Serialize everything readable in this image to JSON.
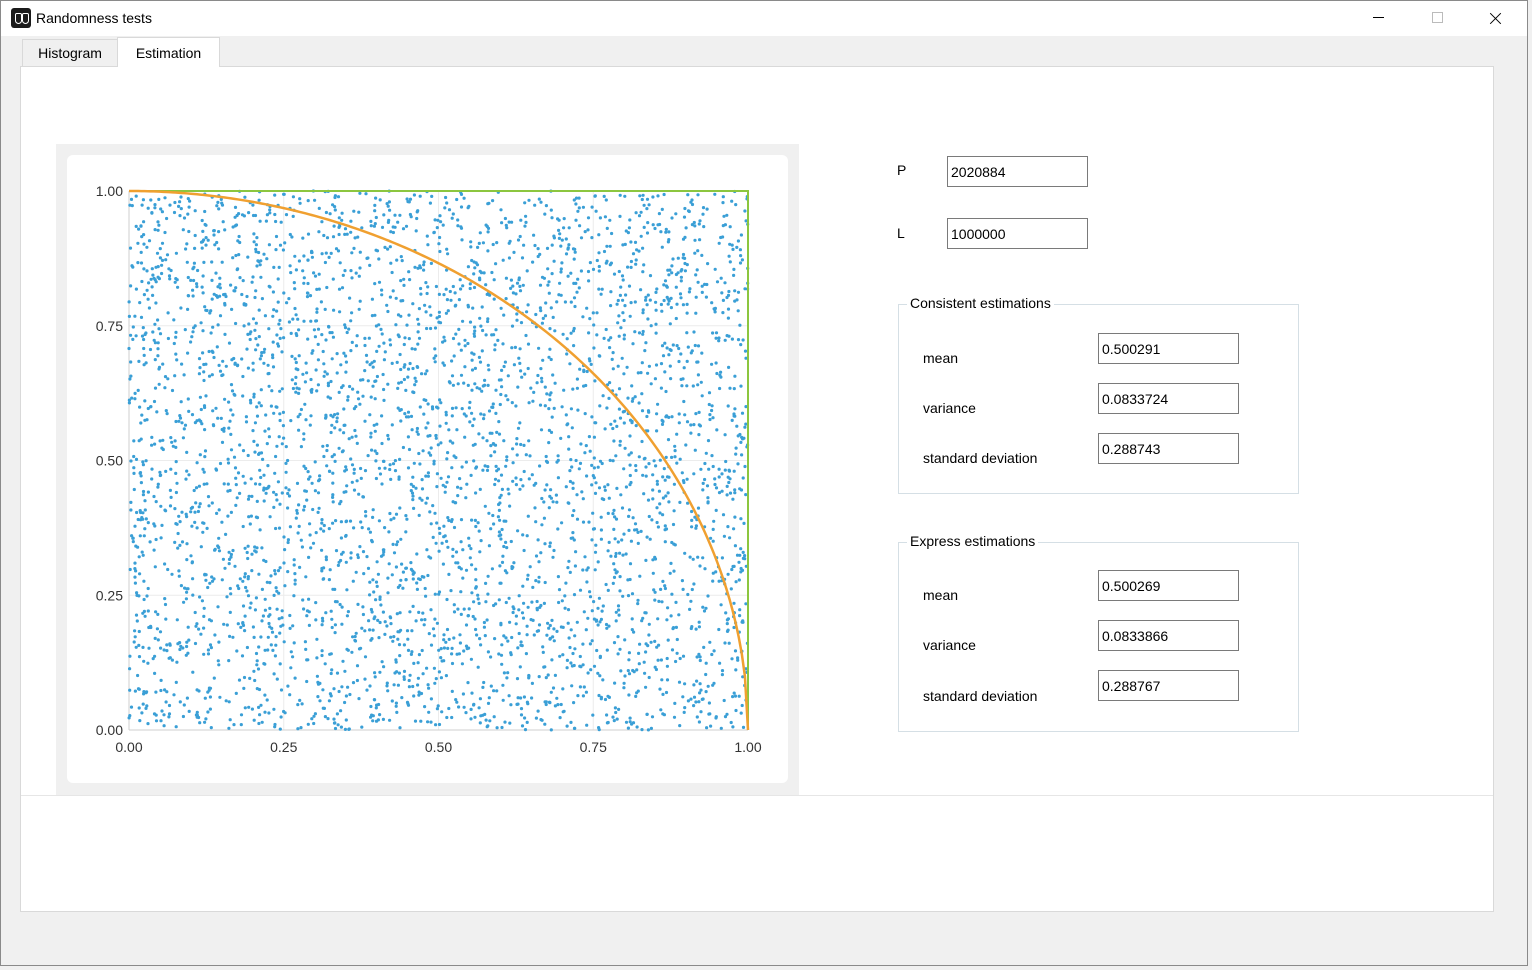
{
  "window": {
    "title": "Randomness tests"
  },
  "tabs": [
    {
      "label": "Histogram",
      "selected": false
    },
    {
      "label": "Estimation",
      "selected": true
    }
  ],
  "params": {
    "p_label": "P",
    "p_value": "2020884",
    "l_label": "L",
    "l_value": "1000000"
  },
  "consistent": {
    "title": "Consistent estimations",
    "mean_label": "mean",
    "mean": "0.500291",
    "variance_label": "variance",
    "variance": "0.0833724",
    "std_label": "standard deviation",
    "std": "0.288743"
  },
  "express": {
    "title": "Express estimations",
    "mean_label": "mean",
    "mean": "0.500269",
    "variance_label": "variance",
    "variance": "0.0833866",
    "std_label": "standard deviation",
    "std": "0.288767"
  },
  "chart_data": {
    "type": "scatter",
    "xlim": [
      0,
      1
    ],
    "ylim": [
      0,
      1
    ],
    "xticks": [
      "0.00",
      "0.25",
      "0.50",
      "0.75",
      "1.00"
    ],
    "yticks": [
      "0.00",
      "0.25",
      "0.50",
      "0.75",
      "1.00"
    ],
    "grid": true,
    "series": [
      {
        "type": "scatter",
        "color": "#3a9fd6",
        "n_points": 4000,
        "distribution": "uniform"
      },
      {
        "type": "line",
        "color": "#f0a030",
        "function": "quarter-circle y = sqrt(1 - x^2)"
      },
      {
        "type": "line",
        "color": "#8cc63f",
        "x": [
          0,
          1,
          1
        ],
        "y": [
          1,
          1,
          0
        ]
      }
    ]
  }
}
